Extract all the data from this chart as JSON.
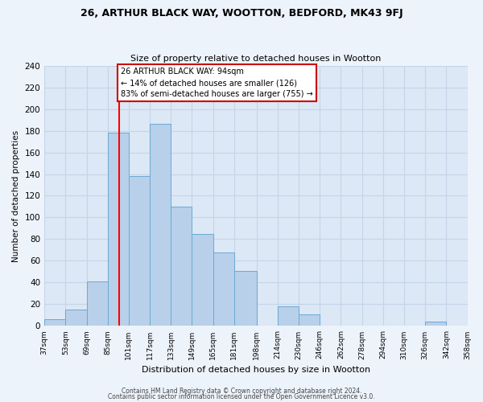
{
  "title": "26, ARTHUR BLACK WAY, WOOTTON, BEDFORD, MK43 9FJ",
  "subtitle": "Size of property relative to detached houses in Wootton",
  "xlabel": "Distribution of detached houses by size in Wootton",
  "ylabel": "Number of detached properties",
  "bin_edges": [
    37,
    53,
    69,
    85,
    101,
    117,
    133,
    149,
    165,
    181,
    198,
    214,
    230,
    246,
    262,
    278,
    294,
    310,
    326,
    342,
    358
  ],
  "bar_heights": [
    6,
    15,
    41,
    178,
    138,
    186,
    110,
    85,
    68,
    51,
    0,
    18,
    11,
    0,
    0,
    0,
    0,
    0,
    4,
    0
  ],
  "tick_labels": [
    "37sqm",
    "53sqm",
    "69sqm",
    "85sqm",
    "101sqm",
    "117sqm",
    "133sqm",
    "149sqm",
    "165sqm",
    "181sqm",
    "198sqm",
    "214sqm",
    "230sqm",
    "246sqm",
    "262sqm",
    "278sqm",
    "294sqm",
    "310sqm",
    "326sqm",
    "342sqm",
    "358sqm"
  ],
  "bar_color": "#b8d0ea",
  "bar_edge_color": "#6aaad4",
  "plot_bg_color": "#dce8f5",
  "fig_bg_color": "#edf3fb",
  "grid_color": "#c5d4e8",
  "red_line_x": 94,
  "annotation_line1": "26 ARTHUR BLACK WAY: 94sqm",
  "annotation_line2": "← 14% of detached houses are smaller (126)",
  "annotation_line3": "83% of semi-detached houses are larger (755) →",
  "annotation_box_edge": "#cc0000",
  "ylim": [
    0,
    240
  ],
  "yticks": [
    0,
    20,
    40,
    60,
    80,
    100,
    120,
    140,
    160,
    180,
    200,
    220,
    240
  ],
  "footer1": "Contains HM Land Registry data © Crown copyright and database right 2024.",
  "footer2": "Contains public sector information licensed under the Open Government Licence v3.0."
}
